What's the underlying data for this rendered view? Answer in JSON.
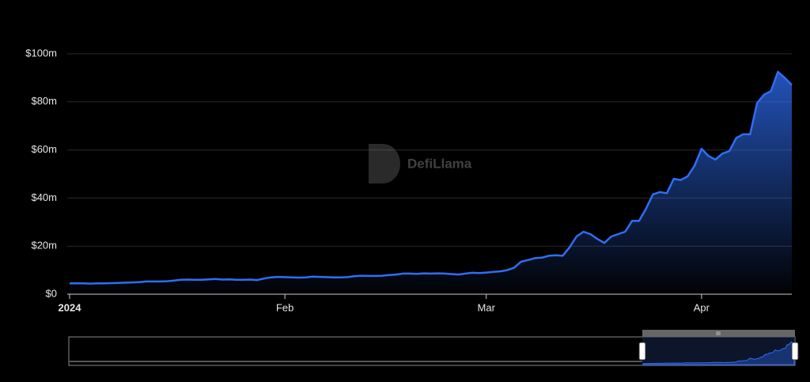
{
  "chart_data": {
    "type": "area",
    "watermark": "DefiLlama",
    "categories": [
      "2024",
      null,
      null,
      null,
      null,
      null,
      null,
      null,
      null,
      null,
      null,
      null,
      null,
      null,
      null,
      null,
      null,
      null,
      null,
      null,
      null,
      null,
      null,
      null,
      null,
      null,
      null,
      null,
      null,
      null,
      null,
      "Feb",
      null,
      null,
      null,
      null,
      null,
      null,
      null,
      null,
      null,
      null,
      null,
      null,
      null,
      null,
      null,
      null,
      null,
      null,
      null,
      null,
      null,
      null,
      null,
      null,
      null,
      null,
      null,
      null,
      "Mar",
      null,
      null,
      null,
      null,
      null,
      null,
      null,
      null,
      null,
      null,
      null,
      null,
      null,
      null,
      null,
      null,
      null,
      null,
      null,
      null,
      null,
      null,
      null,
      null,
      null,
      null,
      null,
      null,
      null,
      null,
      "Apr",
      null,
      null,
      null,
      null,
      null,
      null,
      null,
      null,
      null,
      null,
      null,
      null,
      null
    ],
    "values": [
      4500000,
      4500000,
      4500000,
      4400000,
      4500000,
      4500000,
      4600000,
      4700000,
      4800000,
      4900000,
      5000000,
      5300000,
      5300000,
      5300000,
      5400000,
      5700000,
      6000000,
      6100000,
      6000000,
      6000000,
      6200000,
      6300000,
      6100000,
      6200000,
      6000000,
      6000000,
      6100000,
      5900000,
      6500000,
      7000000,
      7200000,
      7100000,
      7000000,
      6900000,
      7000000,
      7300000,
      7200000,
      7100000,
      7000000,
      7000000,
      7100000,
      7500000,
      7700000,
      7600000,
      7600000,
      7700000,
      8000000,
      8200000,
      8600000,
      8600000,
      8500000,
      8700000,
      8600000,
      8700000,
      8600000,
      8400000,
      8200000,
      8600000,
      8900000,
      8800000,
      9000000,
      9300000,
      9500000,
      10000000,
      11000000,
      13500000,
      14200000,
      15000000,
      15200000,
      16000000,
      16200000,
      16000000,
      19500000,
      24000000,
      26000000,
      25000000,
      23000000,
      21300000,
      24000000,
      25000000,
      26000000,
      30500000,
      30500000,
      35500000,
      41500000,
      42500000,
      42000000,
      48000000,
      47500000,
      49000000,
      53500000,
      60500000,
      57500000,
      56000000,
      58500000,
      59500000,
      65000000,
      66500000,
      66500000,
      79500000,
      83000000,
      84500000,
      92500000,
      90000000,
      87000000
    ],
    "color": "#2f6ef5",
    "ylim": [
      0,
      100000000
    ],
    "yticks": [
      {
        "value": 0,
        "label": "$0"
      },
      {
        "value": 20000000,
        "label": "$20m"
      },
      {
        "value": 40000000,
        "label": "$40m"
      },
      {
        "value": 60000000,
        "label": "$60m"
      },
      {
        "value": 80000000,
        "label": "$80m"
      },
      {
        "value": 100000000,
        "label": "$100m"
      }
    ],
    "grid": true
  }
}
